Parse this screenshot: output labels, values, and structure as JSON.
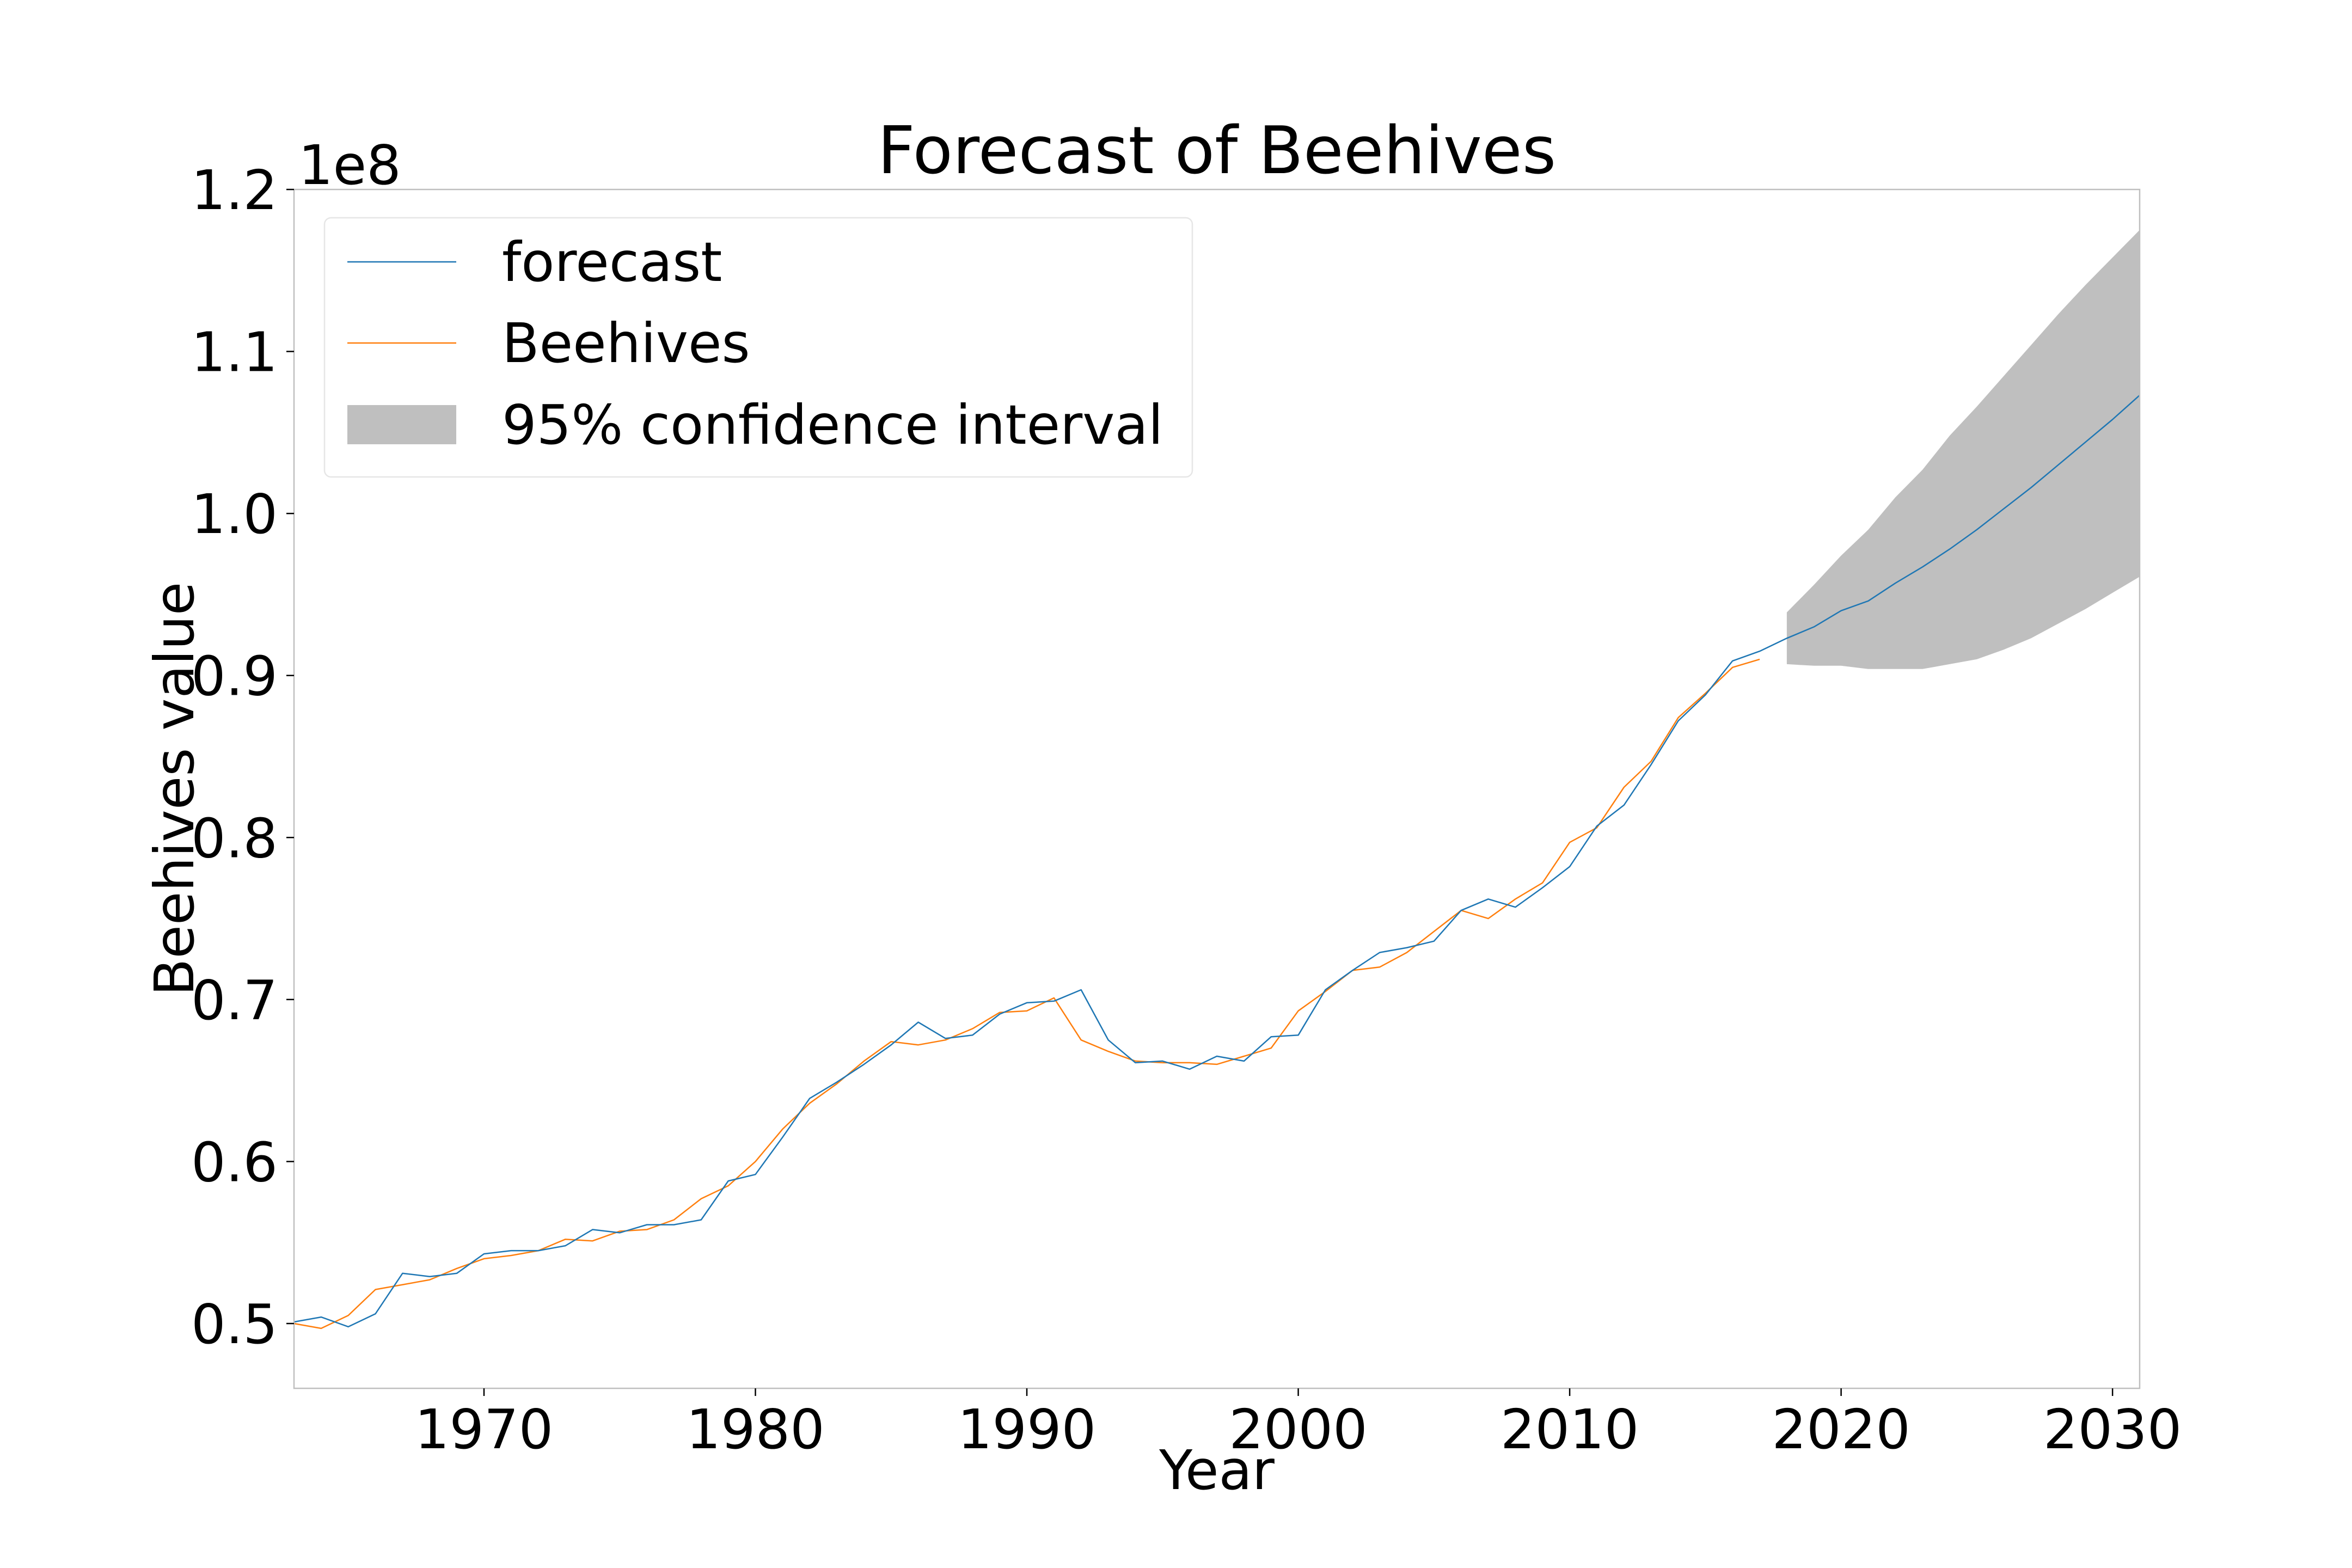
{
  "chart_data": {
    "type": "line",
    "title": "Forecast of Beehives",
    "xlabel": "Year",
    "ylabel": "Beehives value",
    "y_offset_label": "1e8",
    "xlim": [
      1963,
      2031
    ],
    "ylim": [
      0.46,
      1.2
    ],
    "y_scale_factor": 100000000,
    "x_ticks": [
      1970,
      1980,
      1990,
      2000,
      2010,
      2020,
      2030
    ],
    "x_tick_labels": [
      "1970",
      "1980",
      "1990",
      "2000",
      "2010",
      "2020",
      "2030"
    ],
    "y_ticks": [
      0.5,
      0.6,
      0.7,
      0.8,
      0.9,
      1.0,
      1.1,
      1.2
    ],
    "y_tick_labels": [
      "0.5",
      "0.6",
      "0.7",
      "0.8",
      "0.9",
      "1.0",
      "1.1",
      "1.2"
    ],
    "grid": false,
    "legend_position": "top-left",
    "legend": [
      {
        "label": "forecast",
        "kind": "line",
        "color": "#1f77b4"
      },
      {
        "label": "Beehives",
        "kind": "line",
        "color": "#ff7f0e"
      },
      {
        "label": "95% confidence interval",
        "kind": "patch",
        "color": "#bfbfbf"
      }
    ],
    "series": [
      {
        "name": "forecast",
        "color": "#1f77b4",
        "x": [
          1963,
          1964,
          1965,
          1966,
          1967,
          1968,
          1969,
          1970,
          1971,
          1972,
          1973,
          1974,
          1975,
          1976,
          1977,
          1978,
          1979,
          1980,
          1981,
          1982,
          1983,
          1984,
          1985,
          1986,
          1987,
          1988,
          1989,
          1990,
          1991,
          1992,
          1993,
          1994,
          1995,
          1996,
          1997,
          1998,
          1999,
          2000,
          2001,
          2002,
          2003,
          2004,
          2005,
          2006,
          2007,
          2008,
          2009,
          2010,
          2011,
          2012,
          2013,
          2014,
          2015,
          2016,
          2017,
          2018,
          2019,
          2020,
          2021,
          2022,
          2023,
          2024,
          2025,
          2026,
          2027,
          2028,
          2029,
          2030,
          2031
        ],
        "y": [
          0.501,
          0.504,
          0.498,
          0.506,
          0.531,
          0.529,
          0.531,
          0.543,
          0.545,
          0.545,
          0.548,
          0.558,
          0.556,
          0.561,
          0.561,
          0.564,
          0.588,
          0.592,
          0.615,
          0.639,
          0.649,
          0.66,
          0.672,
          0.686,
          0.676,
          0.678,
          0.691,
          0.698,
          0.699,
          0.706,
          0.675,
          0.661,
          0.662,
          0.657,
          0.665,
          0.662,
          0.677,
          0.678,
          0.706,
          0.718,
          0.729,
          0.732,
          0.736,
          0.755,
          0.762,
          0.757,
          0.769,
          0.782,
          0.807,
          0.82,
          0.845,
          0.872,
          0.888,
          0.909,
          0.915,
          0.923,
          0.93,
          0.94,
          0.946,
          0.957,
          0.967,
          0.978,
          0.99,
          1.003,
          1.016,
          1.03,
          1.044,
          1.058,
          1.073
        ]
      },
      {
        "name": "Beehives",
        "color": "#ff7f0e",
        "x": [
          1963,
          1964,
          1965,
          1966,
          1967,
          1968,
          1969,
          1970,
          1971,
          1972,
          1973,
          1974,
          1975,
          1976,
          1977,
          1978,
          1979,
          1980,
          1981,
          1982,
          1983,
          1984,
          1985,
          1986,
          1987,
          1988,
          1989,
          1990,
          1991,
          1992,
          1993,
          1994,
          1995,
          1996,
          1997,
          1998,
          1999,
          2000,
          2001,
          2002,
          2003,
          2004,
          2005,
          2006,
          2007,
          2008,
          2009,
          2010,
          2011,
          2012,
          2013,
          2014,
          2015,
          2016,
          2017
        ],
        "y": [
          0.5,
          0.497,
          0.505,
          0.521,
          0.524,
          0.527,
          0.534,
          0.54,
          0.542,
          0.545,
          0.552,
          0.551,
          0.557,
          0.558,
          0.564,
          0.577,
          0.585,
          0.6,
          0.62,
          0.636,
          0.648,
          0.662,
          0.674,
          0.672,
          0.675,
          0.682,
          0.692,
          0.693,
          0.701,
          0.675,
          0.668,
          0.662,
          0.661,
          0.661,
          0.66,
          0.665,
          0.67,
          0.693,
          0.705,
          0.718,
          0.72,
          0.729,
          0.742,
          0.755,
          0.75,
          0.762,
          0.772,
          0.797,
          0.806,
          0.831,
          0.847,
          0.874,
          0.889,
          0.905,
          0.91
        ]
      }
    ],
    "confidence_interval": {
      "label": "95% confidence interval",
      "color": "#bfbfbf",
      "x": [
        2018,
        2019,
        2020,
        2021,
        2022,
        2023,
        2024,
        2025,
        2026,
        2027,
        2028,
        2029,
        2030,
        2031
      ],
      "lower": [
        0.907,
        0.906,
        0.906,
        0.904,
        0.904,
        0.904,
        0.907,
        0.91,
        0.916,
        0.923,
        0.932,
        0.941,
        0.951,
        0.961
      ],
      "upper": [
        0.939,
        0.956,
        0.974,
        0.99,
        1.01,
        1.027,
        1.048,
        1.066,
        1.085,
        1.104,
        1.123,
        1.141,
        1.158,
        1.175
      ]
    }
  }
}
